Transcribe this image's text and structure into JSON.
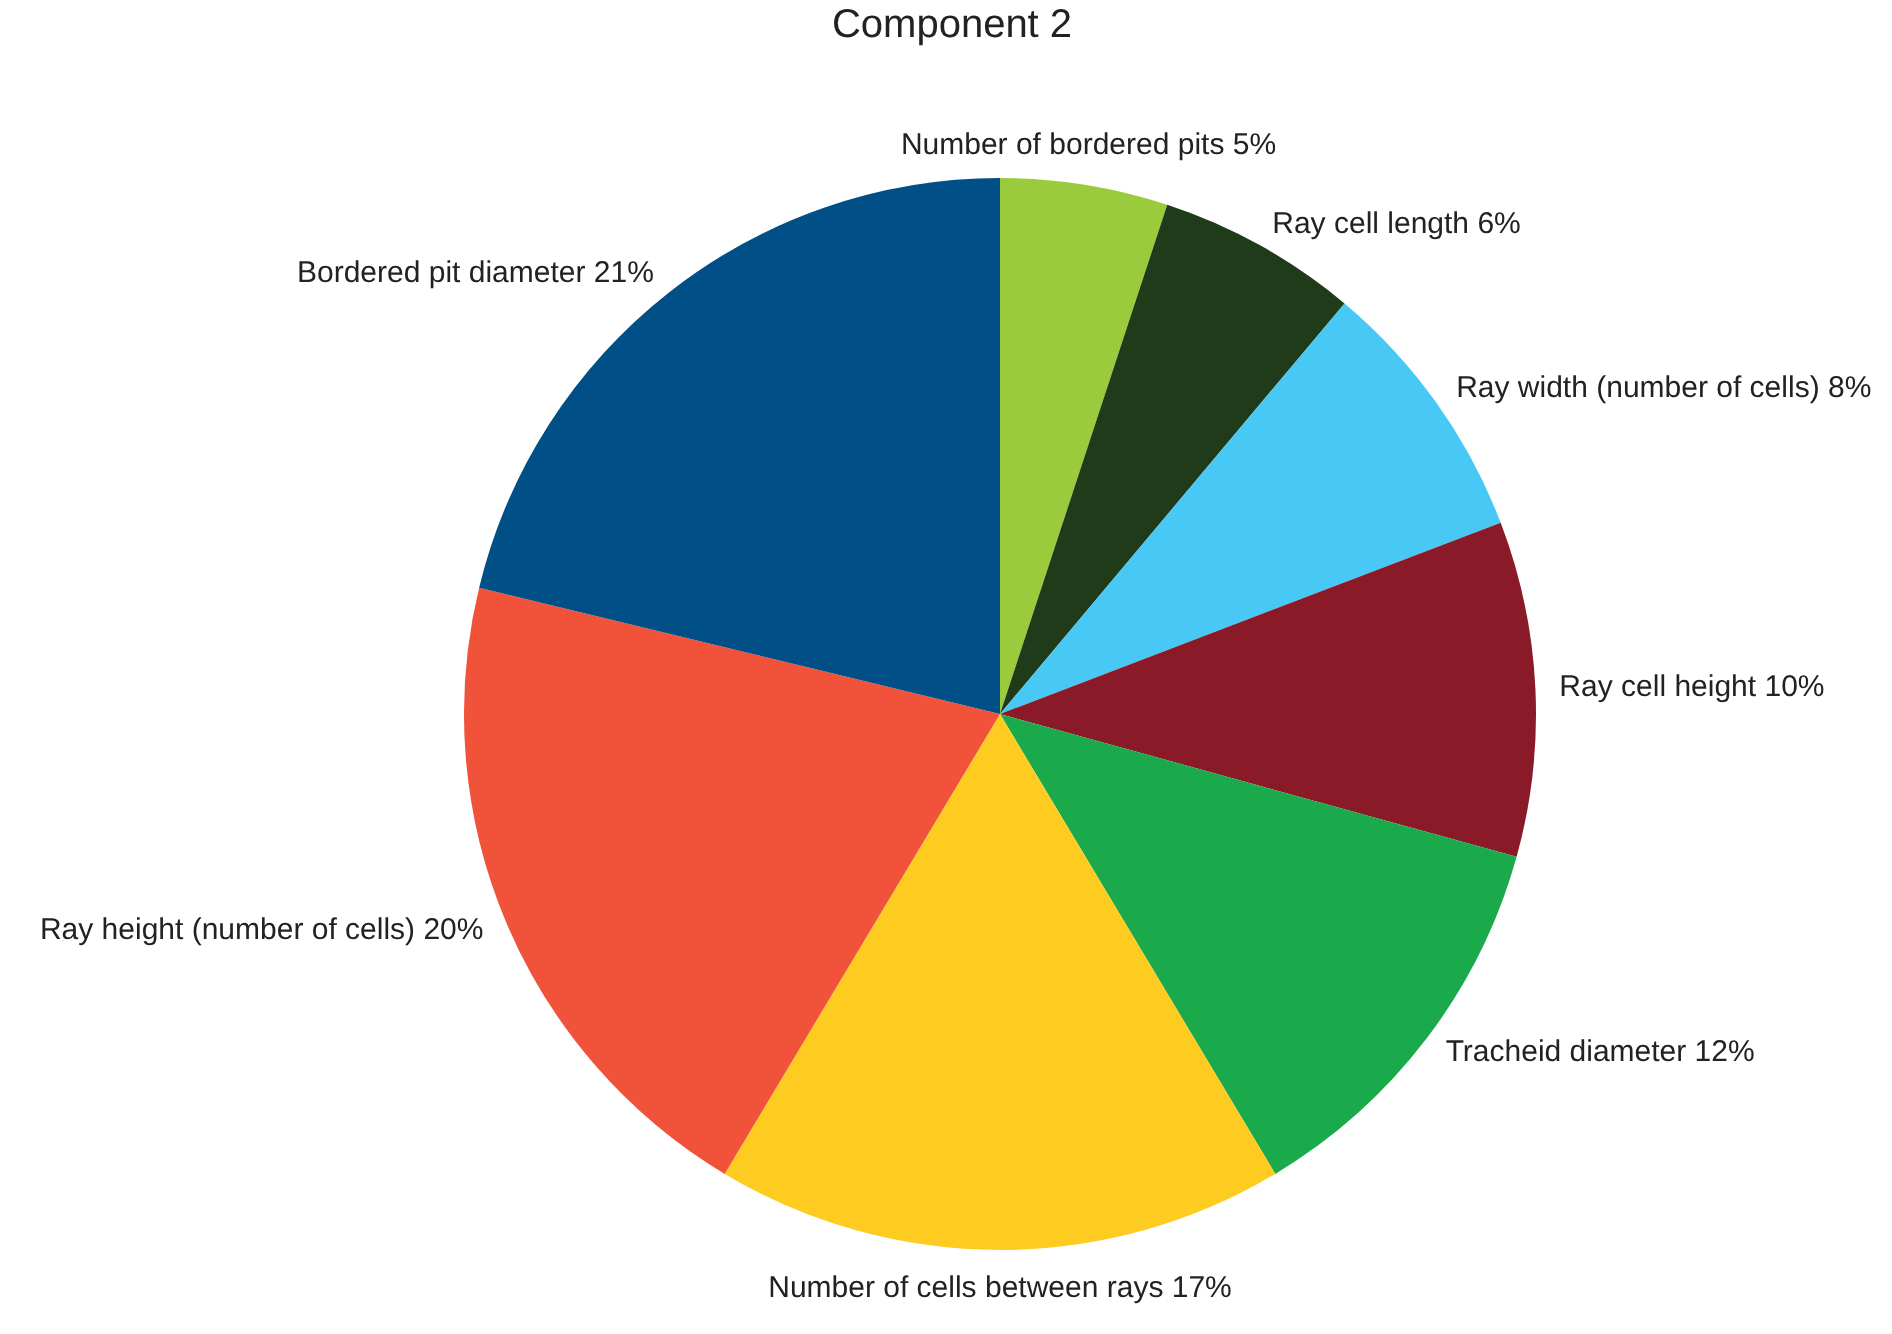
{
  "chart_data": {
    "type": "pie",
    "title": "Component 2",
    "categories": [
      "Number of bordered pits",
      "Ray cell length",
      "Ray width (number of cells)",
      "Ray cell height",
      "Tracheid diameter",
      "Number of cells between rays",
      "Ray height (number of cells)",
      "Bordered pit diameter"
    ],
    "values": [
      5,
      6,
      8,
      10,
      12,
      17,
      20,
      21
    ],
    "value_labels": [
      "5%",
      "6%",
      "8%",
      "10%",
      "12%",
      "17%",
      "20%",
      "21%"
    ],
    "colors": [
      "#9acb3c",
      "#1f3b1a",
      "#47c8f5",
      "#8b1a28",
      "#1aaa4c",
      "#fecb21",
      "#f0533a",
      "#004f86"
    ],
    "legend": false
  }
}
